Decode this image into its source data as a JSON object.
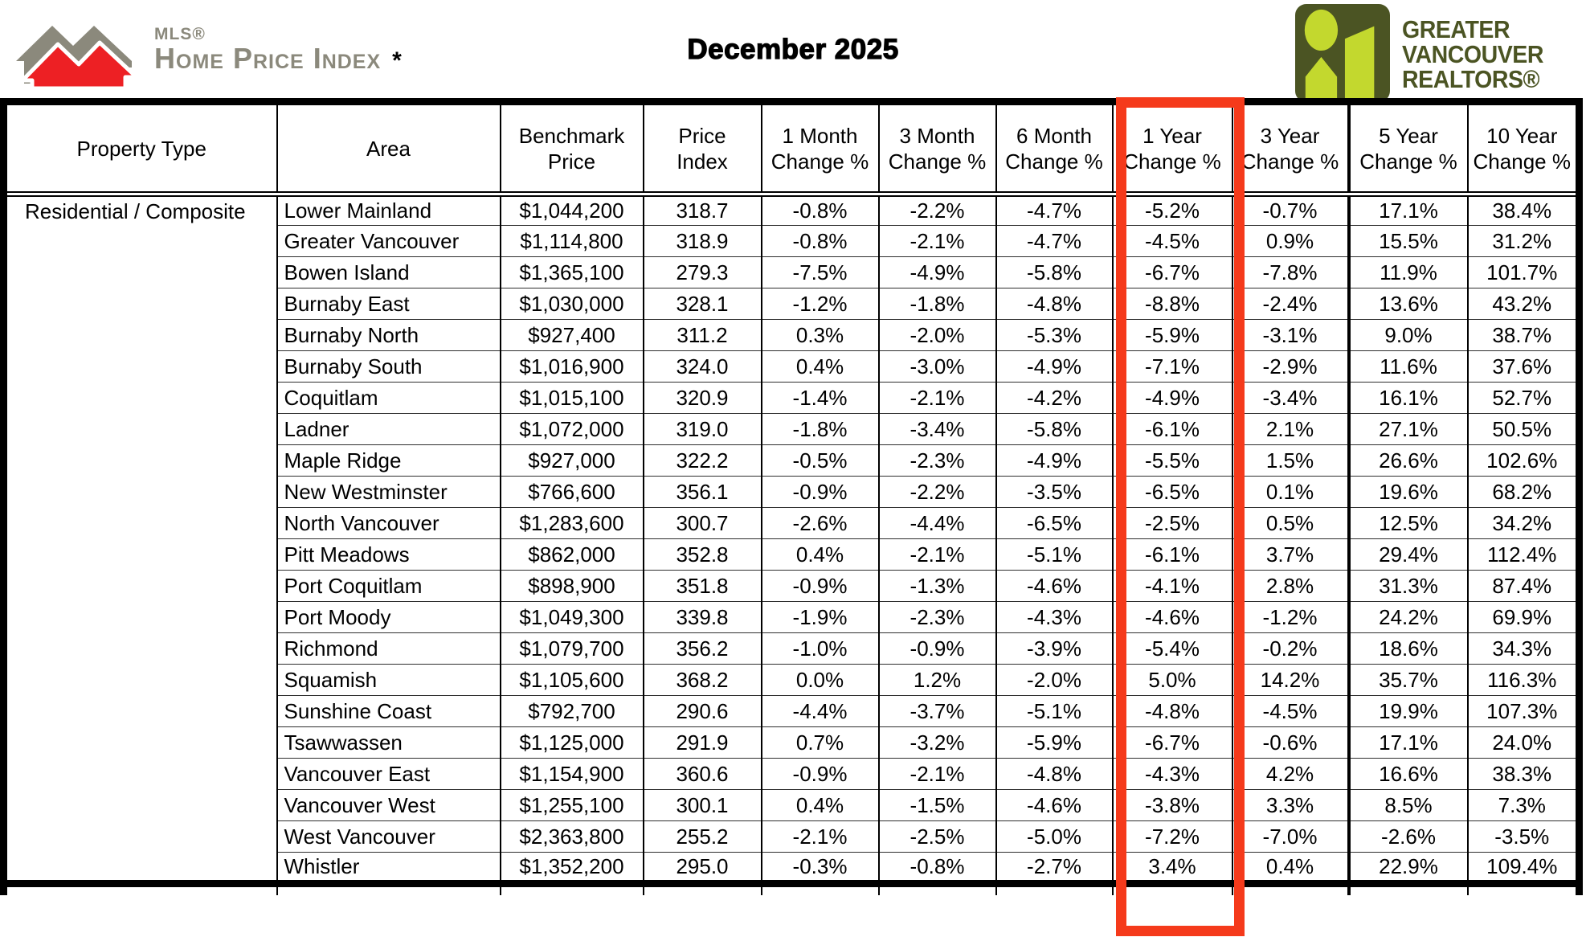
{
  "header": {
    "mls_small": "MLS®",
    "mls_title": "Home Price Index",
    "asterisk": "*",
    "report_month": "December 2025",
    "gvr_lines": [
      "GREATER",
      "VANCOUVER",
      "REALTORS®"
    ]
  },
  "colors": {
    "highlight_red": "#f53a1b",
    "mls_gray": "#8b897c",
    "mls_red": "#ed2024",
    "gvr_dark_olive": "#4b5423",
    "gvr_lime": "#c3d82e"
  },
  "table": {
    "columns": [
      "Property Type",
      "Area",
      "Benchmark\nPrice",
      "Price\nIndex",
      "1 Month\nChange %",
      "3 Month\nChange %",
      "6 Month\nChange %",
      "1 Year\nChange %",
      "3 Year\nChange %",
      "5 Year\nChange %",
      "10 Year\nChange %"
    ],
    "highlighted_column": "1 Year Change %",
    "property_type": "Residential / Composite",
    "rows": [
      [
        "Lower Mainland",
        "$1,044,200",
        "318.7",
        "-0.8%",
        "-2.2%",
        "-4.7%",
        "-5.2%",
        "-0.7%",
        "17.1%",
        "38.4%"
      ],
      [
        "Greater Vancouver",
        "$1,114,800",
        "318.9",
        "-0.8%",
        "-2.1%",
        "-4.7%",
        "-4.5%",
        "0.9%",
        "15.5%",
        "31.2%"
      ],
      [
        "Bowen Island",
        "$1,365,100",
        "279.3",
        "-7.5%",
        "-4.9%",
        "-5.8%",
        "-6.7%",
        "-7.8%",
        "11.9%",
        "101.7%"
      ],
      [
        "Burnaby East",
        "$1,030,000",
        "328.1",
        "-1.2%",
        "-1.8%",
        "-4.8%",
        "-8.8%",
        "-2.4%",
        "13.6%",
        "43.2%"
      ],
      [
        "Burnaby North",
        "$927,400",
        "311.2",
        "0.3%",
        "-2.0%",
        "-5.3%",
        "-5.9%",
        "-3.1%",
        "9.0%",
        "38.7%"
      ],
      [
        "Burnaby South",
        "$1,016,900",
        "324.0",
        "0.4%",
        "-3.0%",
        "-4.9%",
        "-7.1%",
        "-2.9%",
        "11.6%",
        "37.6%"
      ],
      [
        "Coquitlam",
        "$1,015,100",
        "320.9",
        "-1.4%",
        "-2.1%",
        "-4.2%",
        "-4.9%",
        "-3.4%",
        "16.1%",
        "52.7%"
      ],
      [
        "Ladner",
        "$1,072,000",
        "319.0",
        "-1.8%",
        "-3.4%",
        "-5.8%",
        "-6.1%",
        "2.1%",
        "27.1%",
        "50.5%"
      ],
      [
        "Maple Ridge",
        "$927,000",
        "322.2",
        "-0.5%",
        "-2.3%",
        "-4.9%",
        "-5.5%",
        "1.5%",
        "26.6%",
        "102.6%"
      ],
      [
        "New Westminster",
        "$766,600",
        "356.1",
        "-0.9%",
        "-2.2%",
        "-3.5%",
        "-6.5%",
        "0.1%",
        "19.6%",
        "68.2%"
      ],
      [
        "North Vancouver",
        "$1,283,600",
        "300.7",
        "-2.6%",
        "-4.4%",
        "-6.5%",
        "-2.5%",
        "0.5%",
        "12.5%",
        "34.2%"
      ],
      [
        "Pitt Meadows",
        "$862,000",
        "352.8",
        "0.4%",
        "-2.1%",
        "-5.1%",
        "-6.1%",
        "3.7%",
        "29.4%",
        "112.4%"
      ],
      [
        "Port Coquitlam",
        "$898,900",
        "351.8",
        "-0.9%",
        "-1.3%",
        "-4.6%",
        "-4.1%",
        "2.8%",
        "31.3%",
        "87.4%"
      ],
      [
        "Port Moody",
        "$1,049,300",
        "339.8",
        "-1.9%",
        "-2.3%",
        "-4.3%",
        "-4.6%",
        "-1.2%",
        "24.2%",
        "69.9%"
      ],
      [
        "Richmond",
        "$1,079,700",
        "356.2",
        "-1.0%",
        "-0.9%",
        "-3.9%",
        "-5.4%",
        "-0.2%",
        "18.6%",
        "34.3%"
      ],
      [
        "Squamish",
        "$1,105,600",
        "368.2",
        "0.0%",
        "1.2%",
        "-2.0%",
        "5.0%",
        "14.2%",
        "35.7%",
        "116.3%"
      ],
      [
        "Sunshine Coast",
        "$792,700",
        "290.6",
        "-4.4%",
        "-3.7%",
        "-5.1%",
        "-4.8%",
        "-4.5%",
        "19.9%",
        "107.3%"
      ],
      [
        "Tsawwassen",
        "$1,125,000",
        "291.9",
        "0.7%",
        "-3.2%",
        "-5.9%",
        "-6.7%",
        "-0.6%",
        "17.1%",
        "24.0%"
      ],
      [
        "Vancouver East",
        "$1,154,900",
        "360.6",
        "-0.9%",
        "-2.1%",
        "-4.8%",
        "-4.3%",
        "4.2%",
        "16.6%",
        "38.3%"
      ],
      [
        "Vancouver West",
        "$1,255,100",
        "300.1",
        "0.4%",
        "-1.5%",
        "-4.6%",
        "-3.8%",
        "3.3%",
        "8.5%",
        "7.3%"
      ],
      [
        "West Vancouver",
        "$2,363,800",
        "255.2",
        "-2.1%",
        "-2.5%",
        "-5.0%",
        "-7.2%",
        "-7.0%",
        "-2.6%",
        "-3.5%"
      ],
      [
        "Whistler",
        "$1,352,200",
        "295.0",
        "-0.3%",
        "-0.8%",
        "-2.7%",
        "3.4%",
        "0.4%",
        "22.9%",
        "109.4%"
      ]
    ]
  }
}
